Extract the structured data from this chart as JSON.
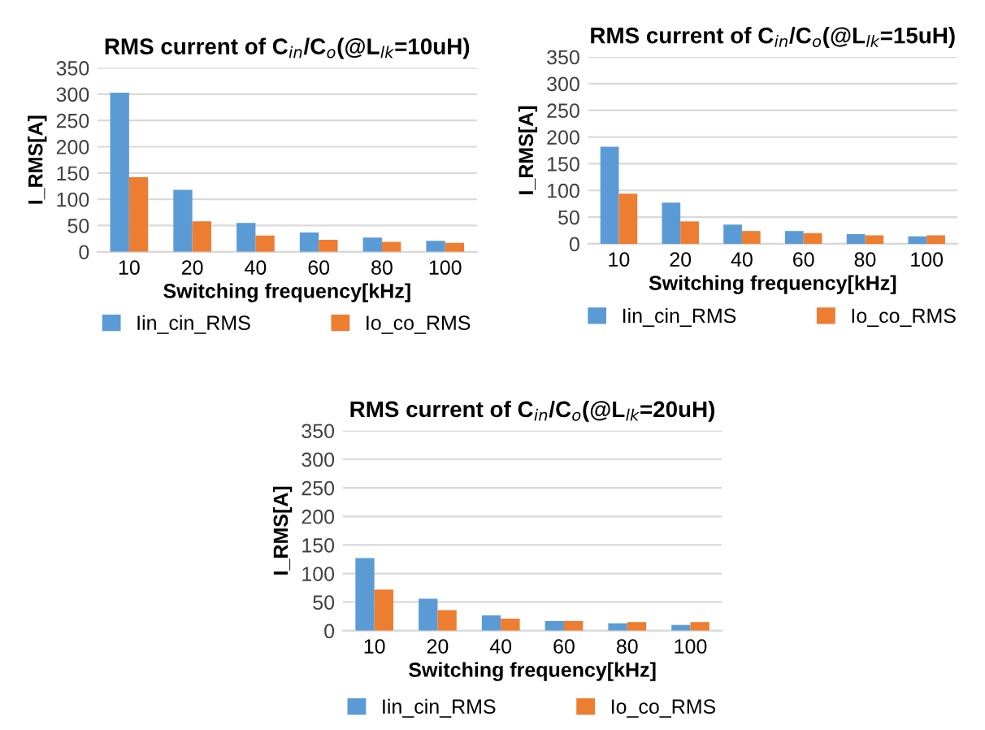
{
  "chart_data": [
    {
      "type": "bar",
      "title": "RMS current of C$_{in}$/C$_{o}$(@L$_{lk}$=10uH)",
      "xlabel": "Switching frequency[kHz]",
      "ylabel": "I_RMS[A]",
      "categories": [
        "10",
        "20",
        "40",
        "60",
        "80",
        "100"
      ],
      "series": [
        {
          "name": "Iin_cin_RMS",
          "color": "#5b9bd5",
          "values": [
            303,
            118,
            55,
            37,
            27,
            21
          ]
        },
        {
          "name": "Io_co_RMS",
          "color": "#ed7d31",
          "values": [
            142,
            58,
            31,
            23,
            19,
            17
          ]
        }
      ],
      "ylim": [
        0,
        350
      ],
      "yticks": [
        0,
        50,
        100,
        150,
        200,
        250,
        300,
        350
      ],
      "grid": "y",
      "legend": "bottom"
    },
    {
      "type": "bar",
      "title": "RMS current of C$_{in}$/C$_{o}$(@L$_{lk}$=15uH)",
      "xlabel": "Switching frequency[kHz]",
      "ylabel": "I_RMS[A]",
      "categories": [
        "10",
        "20",
        "40",
        "60",
        "80",
        "100"
      ],
      "series": [
        {
          "name": "Iin_cin_RMS",
          "color": "#5b9bd5",
          "values": [
            182,
            77,
            36,
            24,
            18,
            14
          ]
        },
        {
          "name": "Io_co_RMS",
          "color": "#ed7d31",
          "values": [
            94,
            42,
            24,
            20,
            16,
            16
          ]
        }
      ],
      "ylim": [
        0,
        350
      ],
      "yticks": [
        0,
        50,
        100,
        150,
        200,
        250,
        300,
        350
      ],
      "grid": "y",
      "legend": "bottom"
    },
    {
      "type": "bar",
      "title": "RMS current of C$_{in}$/C$_{o}$(@L$_{lk}$=20uH)",
      "xlabel": "Switching frequency[kHz]",
      "ylabel": "I_RMS[A]",
      "categories": [
        "10",
        "20",
        "40",
        "60",
        "80",
        "100"
      ],
      "series": [
        {
          "name": "Iin_cin_RMS",
          "color": "#5b9bd5",
          "values": [
            127,
            56,
            27,
            17,
            13,
            10
          ]
        },
        {
          "name": "Io_co_RMS",
          "color": "#ed7d31",
          "values": [
            72,
            36,
            21,
            17,
            15,
            15
          ]
        }
      ],
      "ylim": [
        0,
        350
      ],
      "yticks": [
        0,
        50,
        100,
        150,
        200,
        250,
        300,
        350
      ],
      "grid": "y",
      "legend": "bottom"
    }
  ]
}
